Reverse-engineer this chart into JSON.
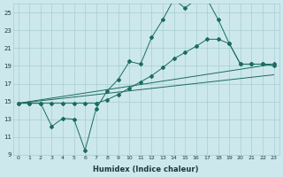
{
  "xlabel": "Humidex (Indice chaleur)",
  "background_color": "#cce8ec",
  "grid_color": "#a8cdd2",
  "line_color": "#1a6b60",
  "xlim": [
    -0.5,
    23.5
  ],
  "ylim": [
    9,
    26
  ],
  "yticks": [
    9,
    11,
    13,
    15,
    17,
    19,
    21,
    23,
    25
  ],
  "xticks": [
    0,
    1,
    2,
    3,
    4,
    5,
    6,
    7,
    8,
    9,
    10,
    11,
    12,
    13,
    14,
    15,
    16,
    17,
    18,
    19,
    20,
    21,
    22,
    23
  ],
  "line1_x": [
    0,
    1,
    2,
    3,
    4,
    5,
    6,
    7,
    8,
    9,
    10,
    11,
    12,
    13,
    14,
    15,
    16,
    17,
    18,
    19,
    20,
    21,
    22,
    23
  ],
  "line1_y": [
    14.8,
    14.8,
    14.8,
    12.2,
    13.1,
    13.0,
    9.5,
    14.2,
    16.2,
    17.5,
    19.5,
    19.2,
    22.2,
    24.2,
    26.5,
    25.5,
    26.5,
    26.5,
    24.2,
    21.5,
    19.2,
    19.2,
    19.2,
    19.2
  ],
  "line2_x": [
    0,
    1,
    2,
    3,
    4,
    5,
    6,
    7,
    8,
    9,
    10,
    11,
    12,
    13,
    14,
    15,
    16,
    17,
    18,
    19,
    20,
    21,
    22,
    23
  ],
  "line2_y": [
    14.8,
    14.8,
    14.8,
    14.8,
    14.8,
    14.8,
    14.8,
    14.8,
    15.2,
    15.8,
    16.5,
    17.2,
    17.9,
    18.8,
    19.8,
    20.5,
    21.2,
    22.0,
    22.0,
    21.5,
    19.2,
    19.2,
    19.2,
    19.0
  ],
  "line3_x": [
    0,
    23
  ],
  "line3_y": [
    14.8,
    19.2
  ],
  "line4_x": [
    0,
    23
  ],
  "line4_y": [
    14.8,
    18.0
  ]
}
